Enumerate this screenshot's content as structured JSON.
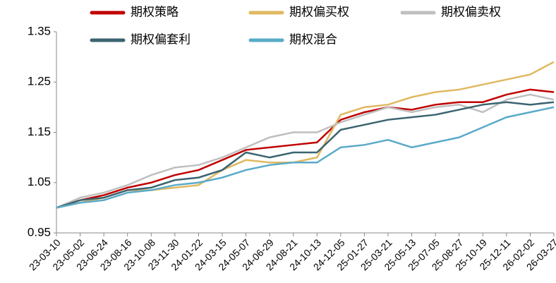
{
  "chart_data": {
    "type": "line",
    "categories": [
      "23-03-10",
      "23-05-02",
      "23-06-24",
      "23-08-16",
      "23-10-08",
      "23-11-30",
      "24-01-22",
      "24-03-15",
      "24-05-07",
      "24-06-29",
      "24-08-21",
      "24-10-13",
      "24-12-05",
      "25-01-27",
      "25-03-21",
      "25-05-13",
      "25-07-05",
      "25-08-27",
      "25-10-19",
      "25-12-11",
      "26-02-02",
      "26-03-27"
    ],
    "series": [
      {
        "name": "期权策略",
        "color": "#c00000",
        "values": [
          1.0,
          1.015,
          1.025,
          1.04,
          1.05,
          1.065,
          1.075,
          1.095,
          1.115,
          1.12,
          1.125,
          1.13,
          1.175,
          1.19,
          1.2,
          1.195,
          1.205,
          1.21,
          1.21,
          1.225,
          1.235,
          1.23
        ]
      },
      {
        "name": "期权偏买权",
        "color": "#e0b860",
        "values": [
          1.0,
          1.01,
          1.02,
          1.035,
          1.035,
          1.04,
          1.045,
          1.075,
          1.095,
          1.09,
          1.09,
          1.1,
          1.185,
          1.2,
          1.205,
          1.22,
          1.23,
          1.235,
          1.245,
          1.255,
          1.265,
          1.29
        ]
      },
      {
        "name": "期权偏卖权",
        "color": "#bfbfbf",
        "values": [
          1.0,
          1.02,
          1.03,
          1.045,
          1.065,
          1.08,
          1.085,
          1.1,
          1.12,
          1.14,
          1.15,
          1.15,
          1.17,
          1.185,
          1.2,
          1.19,
          1.2,
          1.205,
          1.19,
          1.215,
          1.225,
          1.215
        ]
      },
      {
        "name": "期权偏套利",
        "color": "#3b6470",
        "values": [
          1.0,
          1.015,
          1.02,
          1.035,
          1.04,
          1.055,
          1.06,
          1.075,
          1.11,
          1.1,
          1.11,
          1.11,
          1.155,
          1.165,
          1.175,
          1.18,
          1.185,
          1.195,
          1.205,
          1.21,
          1.205,
          1.21
        ]
      },
      {
        "name": "期权混合",
        "color": "#5aaac8",
        "values": [
          1.0,
          1.01,
          1.015,
          1.03,
          1.035,
          1.045,
          1.05,
          1.06,
          1.075,
          1.085,
          1.09,
          1.09,
          1.12,
          1.125,
          1.135,
          1.12,
          1.13,
          1.14,
          1.16,
          1.18,
          1.19,
          1.2
        ]
      }
    ],
    "ylim": [
      0.95,
      1.35
    ],
    "yticks": [
      0.95,
      1.05,
      1.15,
      1.25,
      1.35
    ]
  }
}
